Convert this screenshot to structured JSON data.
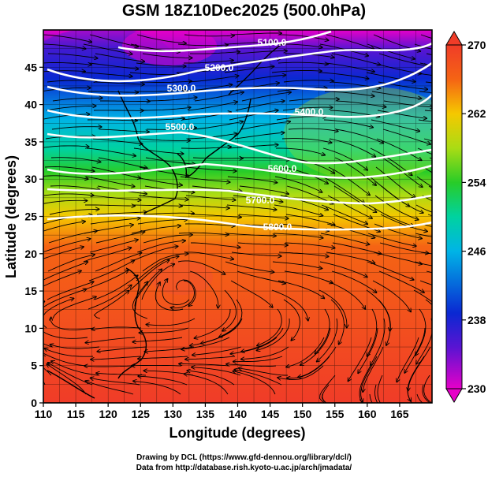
{
  "title": "GSM 18Z10Dec2025 (500.0hPa)",
  "map": {
    "xlabel": "Longitude (degrees)",
    "ylabel": "Latitude  (degrees)",
    "lon_range": [
      110,
      170
    ],
    "lat_range": [
      0,
      50
    ],
    "lon_ticks": [
      "110",
      "115",
      "120",
      "125",
      "130",
      "135",
      "140",
      "145",
      "150",
      "155",
      "160",
      "165"
    ],
    "lat_ticks": [
      "0",
      "5",
      "10",
      "15",
      "20",
      "25",
      "30",
      "35",
      "40",
      "45"
    ],
    "contour_labels": [
      "5100.0",
      "5200.0",
      "5300.0",
      "5400.0",
      "5500.0",
      "5600.0",
      "5700.0",
      "5800.0"
    ],
    "temperature_range_K": [
      230,
      270
    ],
    "colors": {
      "c230": "#e600c8",
      "c236": "#5a14d2",
      "c240": "#0a28d2",
      "c246": "#00b4e6",
      "c250": "#00d2a0",
      "c254": "#28cc28",
      "c258": "#aadc14",
      "c262": "#f5c800",
      "c266": "#f56414",
      "c270": "#f03c28"
    }
  },
  "colorbar": {
    "labels": [
      "270",
      "262",
      "254",
      "246",
      "238",
      "230"
    ]
  },
  "credits": {
    "line1": "Drawing by DCL (https://www.gfd-dennou.org/library/dcl/)",
    "line2": "Data from http://database.rish.kyoto-u.ac.jp/arch/jmadata/"
  }
}
